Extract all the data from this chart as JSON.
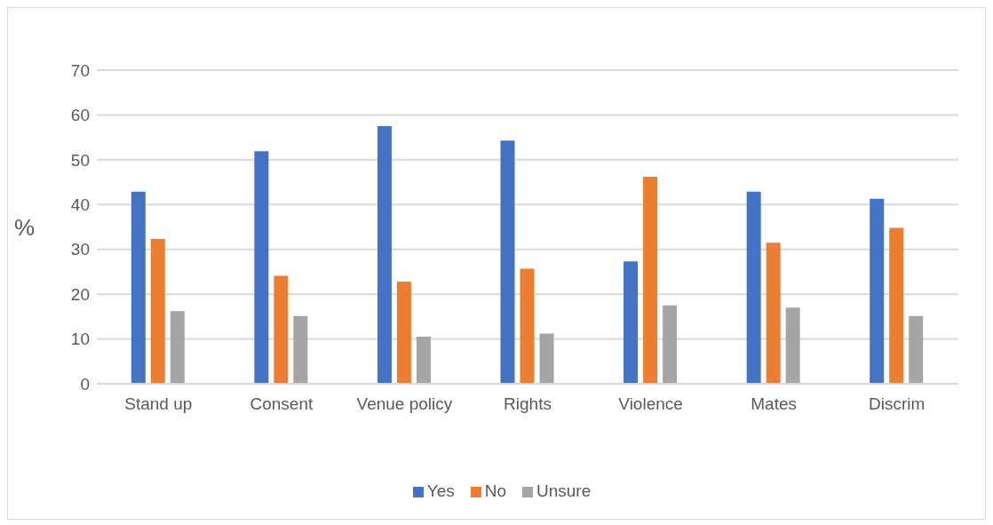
{
  "chart_data": {
    "type": "bar",
    "ylabel": "%",
    "categories": [
      "Stand up",
      "Consent",
      "Venue policy",
      "Rights",
      "Violence",
      "Mates",
      "Discrim"
    ],
    "series": [
      {
        "name": "Yes",
        "color": "#4472c4",
        "values": [
          42.9,
          51.9,
          57.5,
          54.3,
          27.3,
          42.9,
          41.3
        ]
      },
      {
        "name": "No",
        "color": "#ed7d31",
        "values": [
          32.3,
          24.1,
          22.8,
          25.7,
          46.2,
          31.5,
          34.8
        ]
      },
      {
        "name": "Unsure",
        "color": "#a5a5a5",
        "values": [
          16.2,
          15.1,
          10.5,
          11.2,
          17.5,
          17.0,
          15.1
        ]
      }
    ],
    "ylim": [
      0,
      70
    ],
    "yticks": [
      0,
      10,
      20,
      30,
      40,
      50,
      60,
      70
    ],
    "grid": "y",
    "legend": "bottom"
  }
}
